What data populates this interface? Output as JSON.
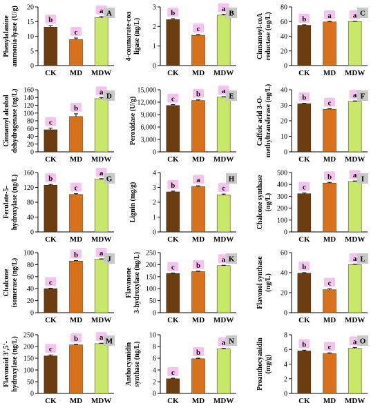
{
  "colors": {
    "CK": "#6b3d10",
    "MD": "#d8711c",
    "MDW": "#c9e86a",
    "highlight": "#f4c4ef",
    "letter_box": "#c8c8c8"
  },
  "chart_data": [
    {
      "type": "bar",
      "panel": "A",
      "ylabel_lines": [
        "Phenylalanine",
        "ammonia-lyase (U/g)"
      ],
      "categories": [
        "CK",
        "MD",
        "MDW"
      ],
      "values": [
        13.1,
        8.9,
        16.3
      ],
      "errors": [
        0.5,
        0.5,
        0.4
      ],
      "sig": [
        "b",
        "c",
        "a"
      ],
      "ylim": [
        0,
        20
      ],
      "yticks": [
        "0",
        "5",
        "10",
        "15",
        "20"
      ]
    },
    {
      "type": "bar",
      "panel": "B",
      "ylabel_lines": [
        "4-coumarate-coa",
        "ligase (ng/L)"
      ],
      "categories": [
        "CK",
        "MD",
        "MDW"
      ],
      "values": [
        2.35,
        1.55,
        2.58
      ],
      "errors": [
        0.05,
        0.04,
        0.04
      ],
      "sig": [
        "b",
        "c",
        "a"
      ],
      "ylim": [
        0,
        3
      ],
      "yticks": [
        "0",
        "1",
        "2",
        "3"
      ]
    },
    {
      "type": "bar",
      "panel": "C",
      "ylabel_lines": [
        "Cinnamoyl-coA",
        "reductase (ng/L)"
      ],
      "categories": [
        "CK",
        "MD",
        "MDW"
      ],
      "values": [
        55,
        59.5,
        60
      ],
      "errors": [
        0.6,
        0.8,
        0.5
      ],
      "sig": [
        "b",
        "a",
        "a"
      ],
      "ylim": [
        0,
        80
      ],
      "yticks": [
        "0",
        "20",
        "40",
        "60",
        "80"
      ]
    },
    {
      "type": "bar",
      "panel": "D",
      "ylabel_lines": [
        "Cinnamyl alcohol",
        "dehydrogenase (ng/L)"
      ],
      "categories": [
        "CK",
        "MD",
        "MDW"
      ],
      "values": [
        57,
        91,
        137
      ],
      "errors": [
        4,
        7,
        3
      ],
      "sig": [
        "c",
        "b",
        "a"
      ],
      "ylim": [
        0,
        160
      ],
      "yticks": [
        "0",
        "20",
        "40",
        "60",
        "80",
        "100",
        "120",
        "140",
        "160"
      ]
    },
    {
      "type": "bar",
      "panel": "E",
      "ylabel_lines": [
        "Peroxidase (U/g)"
      ],
      "categories": [
        "CK",
        "MD",
        "MDW"
      ],
      "values": [
        11200,
        12400,
        13200
      ],
      "errors": [
        200,
        150,
        120
      ],
      "sig": [
        "c",
        "b",
        "a"
      ],
      "ylim": [
        0,
        15000
      ],
      "yticks": [
        "0",
        "3,000",
        "6,000",
        "9,000",
        "12,000",
        "15,000"
      ]
    },
    {
      "type": "bar",
      "panel": "F",
      "ylabel_lines": [
        "Caffeic acid 3-O-",
        "methyltransferase (ng/L)"
      ],
      "categories": [
        "CK",
        "MD",
        "MDW"
      ],
      "values": [
        31,
        27.5,
        32.5
      ],
      "errors": [
        0.3,
        0.3,
        0.3
      ],
      "sig": [
        "b",
        "c",
        "a"
      ],
      "ylim": [
        0,
        40
      ],
      "yticks": [
        "0",
        "10",
        "20",
        "30",
        "40"
      ]
    },
    {
      "type": "bar",
      "panel": "G",
      "ylabel_lines": [
        "Ferulate-5-",
        "hydroxylase (ng/L)"
      ],
      "categories": [
        "CK",
        "MD",
        "MDW"
      ],
      "values": [
        126,
        101,
        142
      ],
      "errors": [
        2,
        2,
        1.5
      ],
      "sig": [
        "b",
        "c",
        "a"
      ],
      "ylim": [
        0,
        160
      ],
      "yticks": [
        "0",
        "40",
        "80",
        "120",
        "160"
      ]
    },
    {
      "type": "bar",
      "panel": "H",
      "ylabel_lines": [
        "Lignin (mg/g)"
      ],
      "categories": [
        "CK",
        "MD",
        "MDW"
      ],
      "values": [
        2.7,
        3.05,
        2.5
      ],
      "errors": [
        0.05,
        0.06,
        0.05
      ],
      "sig": [
        "b",
        "a",
        "c"
      ],
      "ylim": [
        0,
        4
      ],
      "yticks": [
        "0",
        "1",
        "2",
        "3",
        "4"
      ]
    },
    {
      "type": "bar",
      "panel": "I",
      "ylabel_lines": [
        "Chalcone synthase",
        "(ng/L)"
      ],
      "categories": [
        "CK",
        "MD",
        "MDW"
      ],
      "values": [
        322,
        412,
        425
      ],
      "errors": [
        6,
        5,
        4
      ],
      "sig": [
        "c",
        "b",
        "a"
      ],
      "ylim": [
        0,
        500
      ],
      "yticks": [
        "0",
        "100",
        "200",
        "300",
        "400",
        "500"
      ]
    },
    {
      "type": "bar",
      "panel": "J",
      "ylabel_lines": [
        "Chalcone",
        "isomerase (ng/L)"
      ],
      "categories": [
        "CK",
        "MD",
        "MDW"
      ],
      "values": [
        40,
        86,
        89
      ],
      "errors": [
        0.8,
        0.8,
        0.6
      ],
      "sig": [
        "c",
        "b",
        "a"
      ],
      "ylim": [
        0,
        100
      ],
      "yticks": [
        "0",
        "20",
        "40",
        "60",
        "80",
        "100"
      ]
    },
    {
      "type": "bar",
      "panel": "K",
      "ylabel_lines": [
        "Flavanone",
        "3-hydroxylase (ng/L)"
      ],
      "categories": [
        "CK",
        "MD",
        "MDW"
      ],
      "values": [
        163,
        171,
        196
      ],
      "errors": [
        2,
        2,
        1.5
      ],
      "sig": [
        "c",
        "b",
        "a"
      ],
      "ylim": [
        0,
        250
      ],
      "yticks": [
        "0",
        "50",
        "100",
        "150",
        "200",
        "250"
      ]
    },
    {
      "type": "bar",
      "panel": "L",
      "ylabel_lines": [
        "Flavonol synthase",
        "(ng/L)"
      ],
      "categories": [
        "CK",
        "MD",
        "MDW"
      ],
      "values": [
        39.5,
        23,
        48
      ],
      "errors": [
        0.5,
        0.8,
        0.4
      ],
      "sig": [
        "b",
        "c",
        "a"
      ],
      "ylim": [
        0,
        60
      ],
      "yticks": [
        "0",
        "20",
        "40",
        "60"
      ]
    },
    {
      "type": "bar",
      "panel": "M",
      "ylabel_lines": [
        "Flavonoid 3',5'-",
        "hydroxylase (ng/L)"
      ],
      "categories": [
        "CK",
        "MD",
        "MDW"
      ],
      "values": [
        160,
        207,
        212
      ],
      "errors": [
        4,
        2,
        2
      ],
      "sig": [
        "c",
        "b",
        "a"
      ],
      "ylim": [
        0,
        250
      ],
      "yticks": [
        "0",
        "50",
        "100",
        "150",
        "200",
        "250"
      ]
    },
    {
      "type": "bar",
      "panel": "N",
      "ylabel_lines": [
        "Anthocyanidin",
        "synthase (ng/L)"
      ],
      "categories": [
        "CK",
        "MD",
        "MDW"
      ],
      "values": [
        2.5,
        5.9,
        7.6
      ],
      "errors": [
        0.1,
        0.1,
        0.08
      ],
      "sig": [
        "c",
        "b",
        "a"
      ],
      "ylim": [
        0,
        10
      ],
      "yticks": [
        "0",
        "2",
        "4",
        "6",
        "8",
        "10"
      ]
    },
    {
      "type": "bar",
      "panel": "O",
      "ylabel_lines": [
        "Proanthocyanidin",
        "(mg/g)"
      ],
      "categories": [
        "CK",
        "MD",
        "MDW"
      ],
      "values": [
        5.8,
        5.45,
        6.15
      ],
      "errors": [
        0.1,
        0.08,
        0.12
      ],
      "sig": [
        "b",
        "c",
        "a"
      ],
      "ylim": [
        0,
        8
      ],
      "yticks": [
        "0",
        "2",
        "4",
        "6",
        "8"
      ]
    }
  ]
}
